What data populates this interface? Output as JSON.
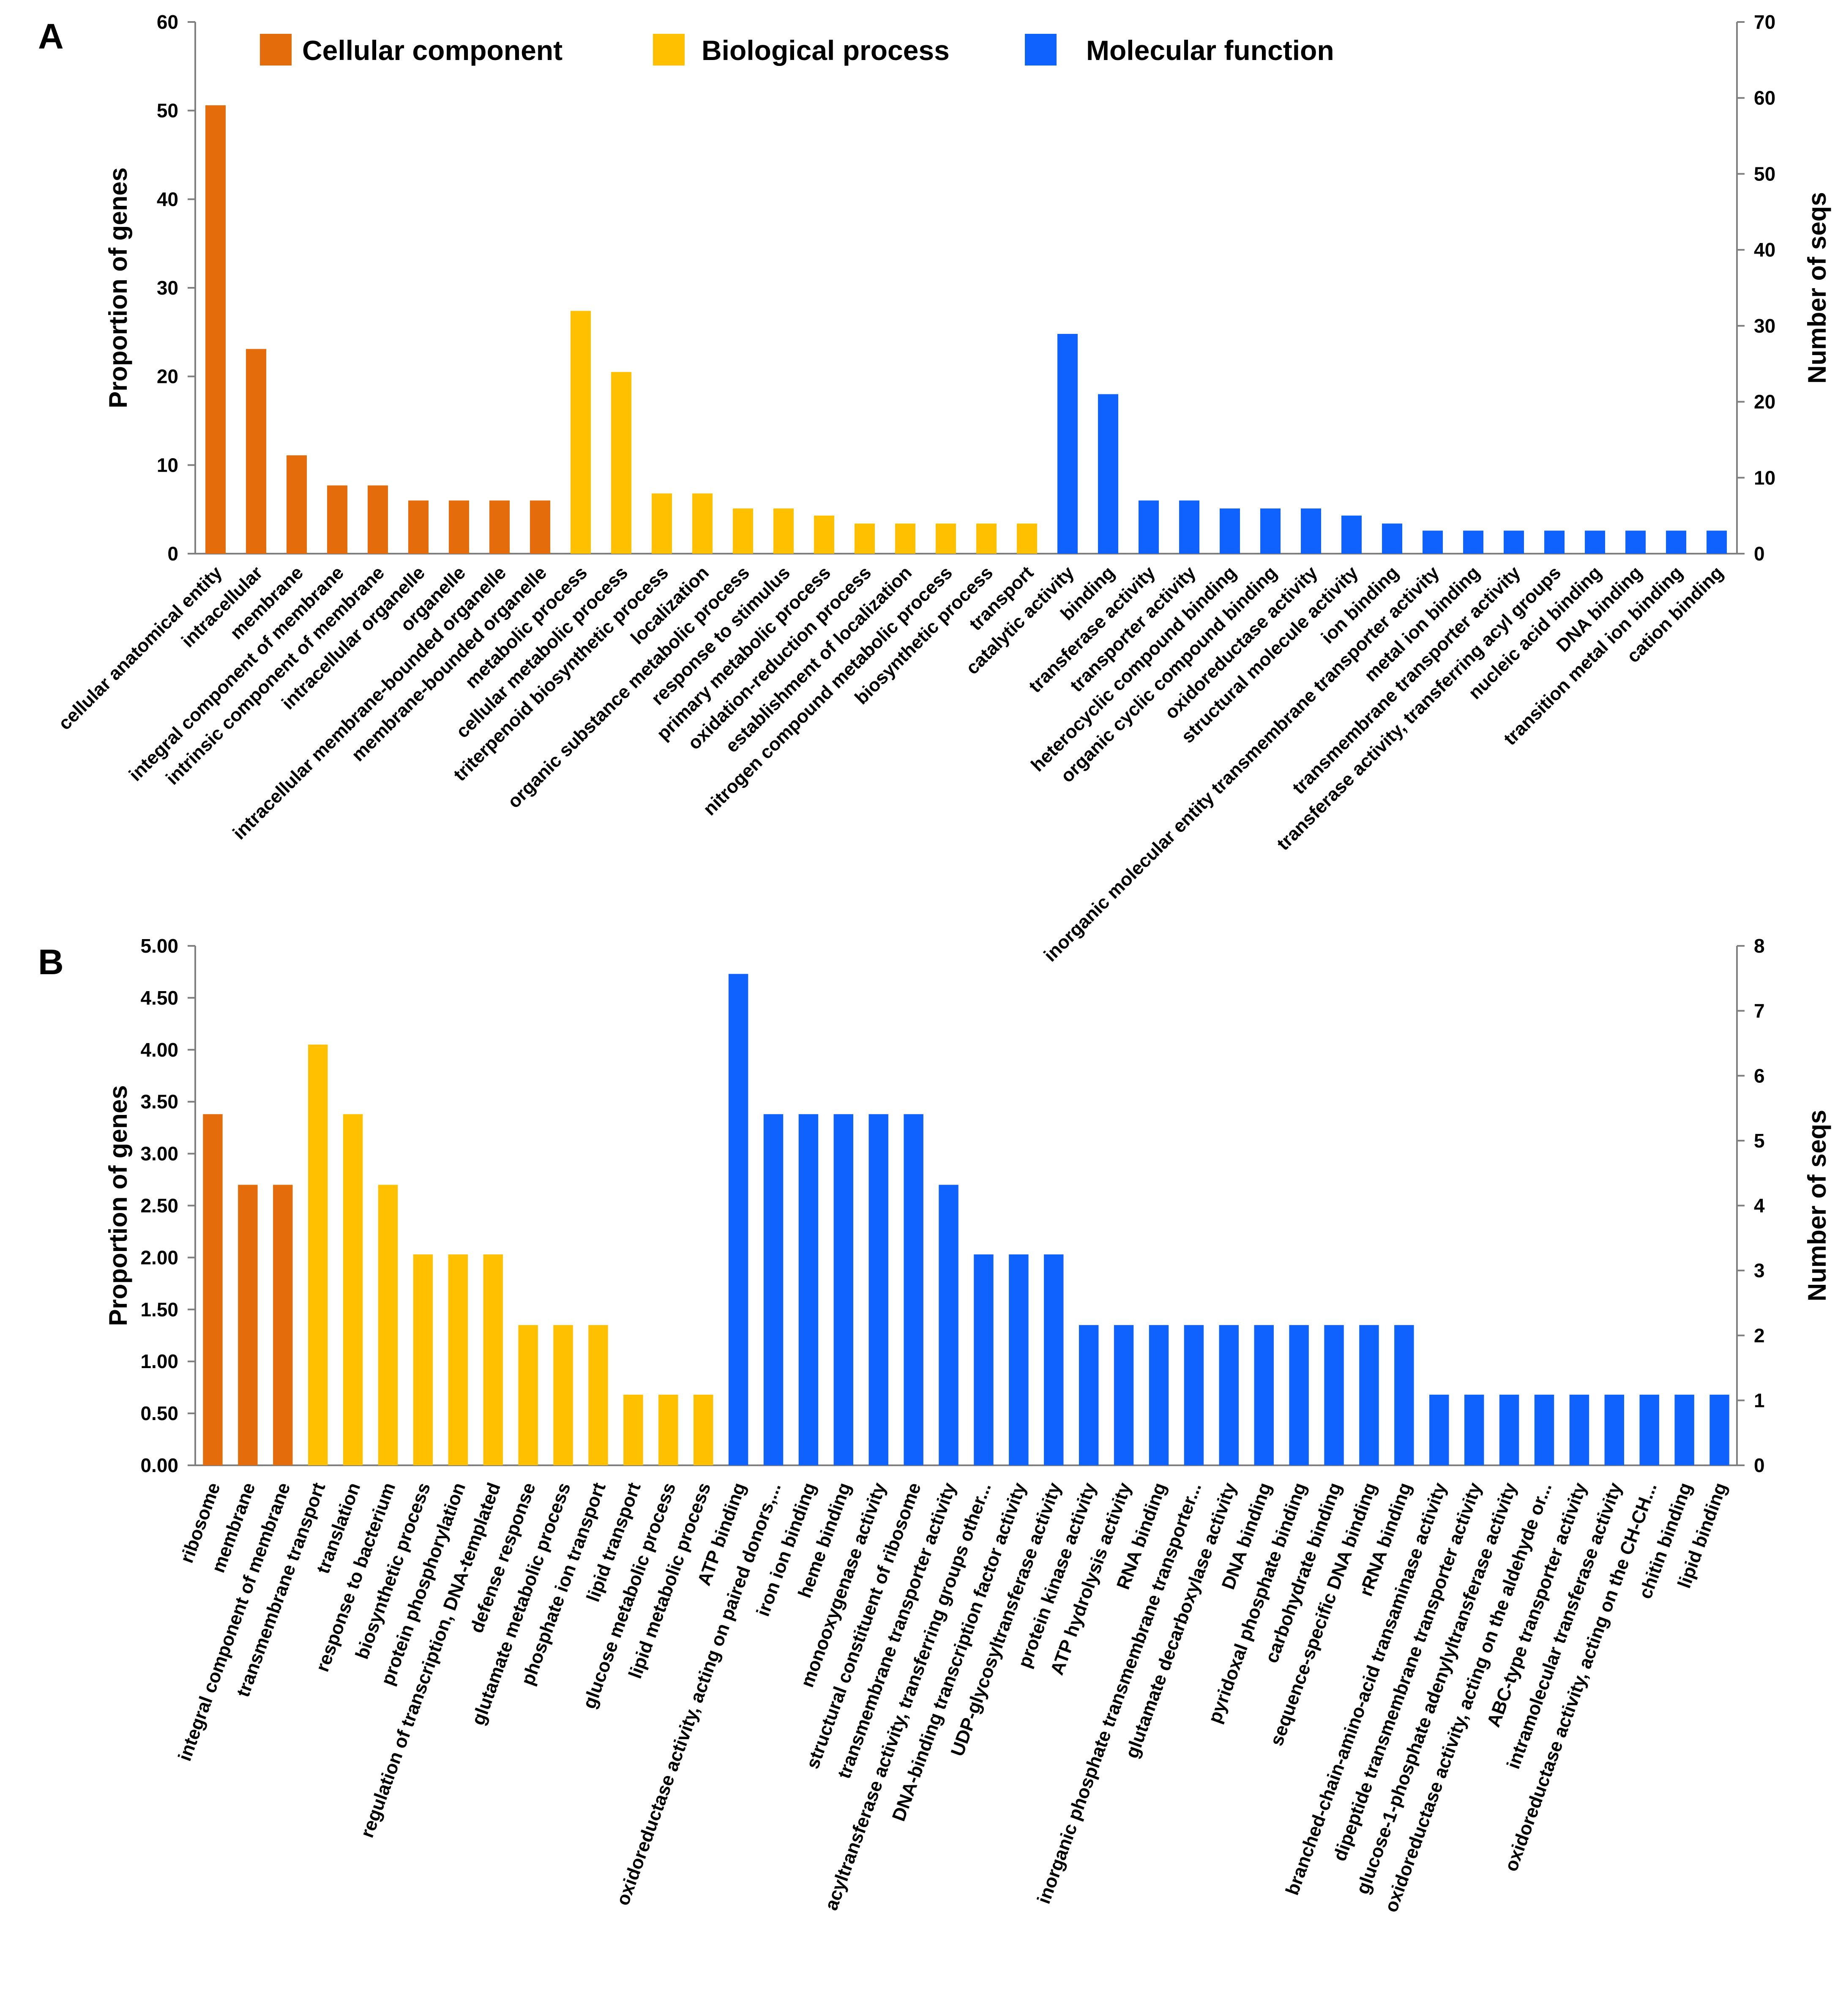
{
  "colors": {
    "cellular_component": "#E46C0A",
    "biological_process": "#FFC000",
    "molecular_function": "#0F62FE"
  },
  "chart_data": [
    {
      "panel": "A",
      "type": "bar",
      "legend": [
        {
          "name": "Cellular component",
          "color": "#E46C0A"
        },
        {
          "name": "Biological process",
          "color": "#FFC000"
        },
        {
          "name": "Molecular function",
          "color": "#0F62FE"
        }
      ],
      "ylabel": "Proportion of genes",
      "y2label": "Number of seqs",
      "ylim": [
        0,
        60
      ],
      "y2lim": [
        0,
        70
      ],
      "yticks": [
        "0",
        "10",
        "20",
        "30",
        "40",
        "50",
        "60"
      ],
      "y2ticks": [
        "0",
        "10",
        "20",
        "30",
        "40",
        "50",
        "60",
        "70"
      ],
      "categories": [
        "cellular anatomical entity",
        "intracellular",
        "membrane",
        "integral component of membrane",
        "intrinsic component of membrane",
        "intracellular organelle",
        "organelle",
        "intracellular membrane-bounded organelle",
        "membrane-bounded organelle",
        "metabolic process",
        "cellular metabolic process",
        "triterpenoid biosynthetic process",
        "localization",
        "organic substance metabolic process",
        "response to stimulus",
        "primary metabolic process",
        "oxidation-reduction process",
        "establishment of localization",
        "nitrogen compound metabolic process",
        "biosynthetic process",
        "transport",
        "catalytic activity",
        "binding",
        "transferase activity",
        "transporter activity",
        "heterocyclic compound binding",
        "organic cyclic compound binding",
        "oxidoreductase activity",
        "structural molecule activity",
        "ion binding",
        "inorganic molecular entity transmembrane transporter activity",
        "metal ion binding",
        "transmembrane transporter activity",
        "transferase activity, transferring acyl groups",
        "nucleic acid binding",
        "DNA binding",
        "transition metal ion binding",
        "cation binding"
      ],
      "groups": [
        "cellular_component",
        "cellular_component",
        "cellular_component",
        "cellular_component",
        "cellular_component",
        "cellular_component",
        "cellular_component",
        "cellular_component",
        "cellular_component",
        "biological_process",
        "biological_process",
        "biological_process",
        "biological_process",
        "biological_process",
        "biological_process",
        "biological_process",
        "biological_process",
        "biological_process",
        "biological_process",
        "biological_process",
        "biological_process",
        "molecular_function",
        "molecular_function",
        "molecular_function",
        "molecular_function",
        "molecular_function",
        "molecular_function",
        "molecular_function",
        "molecular_function",
        "molecular_function",
        "molecular_function",
        "molecular_function",
        "molecular_function",
        "molecular_function",
        "molecular_function",
        "molecular_function",
        "molecular_function",
        "molecular_function"
      ],
      "values": [
        50.6,
        23.1,
        11.1,
        7.7,
        7.7,
        6.0,
        6.0,
        6.0,
        6.0,
        27.4,
        20.5,
        6.8,
        6.8,
        5.1,
        5.1,
        4.3,
        3.4,
        3.4,
        3.4,
        3.4,
        3.4,
        24.8,
        18.0,
        6.0,
        6.0,
        5.1,
        5.1,
        5.1,
        4.3,
        3.4,
        2.6,
        2.6,
        2.6,
        2.6,
        2.6,
        2.6,
        2.6,
        2.6
      ]
    },
    {
      "panel": "B",
      "type": "bar",
      "ylabel": "Proportion of genes",
      "y2label": "Number of seqs",
      "ylim": [
        0,
        5
      ],
      "y2lim": [
        0,
        8
      ],
      "yticks": [
        "0.00",
        "0.50",
        "1.00",
        "1.50",
        "2.00",
        "2.50",
        "3.00",
        "3.50",
        "4.00",
        "4.50",
        "5.00"
      ],
      "y2ticks": [
        "0",
        "1",
        "2",
        "3",
        "4",
        "5",
        "6",
        "7",
        "8"
      ],
      "categories": [
        "ribosome",
        "membrane",
        "integral component of membrane",
        "transmembrane transport",
        "translation",
        "response to bacterium",
        "biosynthetic process",
        "protein phosphorylation",
        "regulation of transcription, DNA-templated",
        "defense response",
        "glutamate metabolic process",
        "phosphate ion transport",
        "lipid transport",
        "glucose metabolic process",
        "lipid metabolic process",
        "ATP binding",
        "oxidoreductase activity, acting on paired donors,...",
        "iron ion binding",
        "heme binding",
        "monooxygenase activity",
        "structural constituent of ribosome",
        "transmembrane transporter activity",
        "acyltransferase activity, transferring groups other...",
        "DNA-binding transcription factor activity",
        "UDP-glycosyltransferase activity",
        "protein kinase activity",
        "ATP hydrolysis activity",
        "RNA binding",
        "inorganic phosphate transmembrane transporter...",
        "glutamate decarboxylase activity",
        "DNA binding",
        "pyridoxal phosphate binding",
        "carbohydrate binding",
        "sequence-specific DNA binding",
        "rRNA binding",
        "branched-chain-amino-acid transaminase activity",
        "dipeptide transmembrane transporter activity",
        "glucose-1-phosphate adenylyltransferase activity",
        "oxidoreductase activity, acting on the aldehyde or...",
        "ABC-type transporter activity",
        "intramolecular transferase activity",
        "oxidoreductase activity, acting on the CH-CH...",
        "chitin binding",
        "lipid binding"
      ],
      "groups": [
        "cellular_component",
        "cellular_component",
        "cellular_component",
        "biological_process",
        "biological_process",
        "biological_process",
        "biological_process",
        "biological_process",
        "biological_process",
        "biological_process",
        "biological_process",
        "biological_process",
        "biological_process",
        "biological_process",
        "biological_process",
        "molecular_function",
        "molecular_function",
        "molecular_function",
        "molecular_function",
        "molecular_function",
        "molecular_function",
        "molecular_function",
        "molecular_function",
        "molecular_function",
        "molecular_function",
        "molecular_function",
        "molecular_function",
        "molecular_function",
        "molecular_function",
        "molecular_function",
        "molecular_function",
        "molecular_function",
        "molecular_function",
        "molecular_function",
        "molecular_function",
        "molecular_function",
        "molecular_function",
        "molecular_function",
        "molecular_function",
        "molecular_function",
        "molecular_function",
        "molecular_function",
        "molecular_function",
        "molecular_function"
      ],
      "values": [
        3.38,
        2.7,
        2.7,
        4.05,
        3.38,
        2.7,
        2.03,
        2.03,
        2.03,
        1.35,
        1.35,
        1.35,
        0.68,
        0.68,
        0.68,
        4.73,
        3.38,
        3.38,
        3.38,
        3.38,
        3.38,
        2.7,
        2.03,
        2.03,
        2.03,
        1.35,
        1.35,
        1.35,
        1.35,
        1.35,
        1.35,
        1.35,
        1.35,
        1.35,
        1.35,
        0.68,
        0.68,
        0.68,
        0.68,
        0.68,
        0.68,
        0.68,
        0.68,
        0.68
      ]
    }
  ]
}
